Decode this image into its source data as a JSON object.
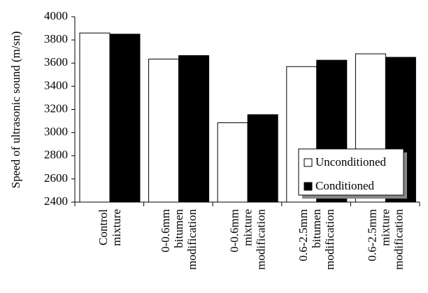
{
  "chart_data": {
    "type": "bar",
    "y_label": "Speed of ultrasonic sound (m/sn)",
    "categories": [
      "Control mixture",
      "0-0.6mm bitumen modification",
      "0-0.6mm mixture modification",
      "0.6-2.5mm bitumen modification",
      "0.6-2.5mm mixture modification"
    ],
    "series": [
      {
        "name": "Unconditioned",
        "color": "#ffffff",
        "values": [
          3860,
          3635,
          3085,
          3570,
          3680
        ]
      },
      {
        "name": "Conditioned",
        "color": "#000000",
        "values": [
          3850,
          3665,
          3155,
          3625,
          3650
        ]
      }
    ],
    "ylim": [
      2400,
      4000
    ],
    "yticks": [
      2400,
      2600,
      2800,
      3000,
      3200,
      3400,
      3600,
      3800,
      4000
    ],
    "grid": false,
    "legend": "lower right"
  }
}
